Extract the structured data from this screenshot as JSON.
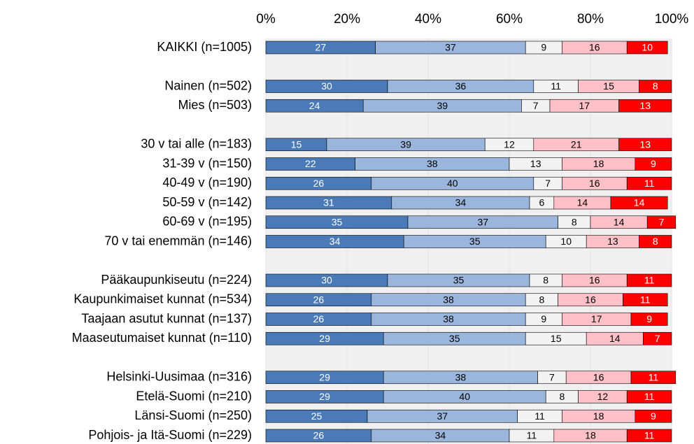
{
  "chart_data": {
    "type": "stacked_barh",
    "categories": [
      "KAIKKI (n=1005)",
      null,
      "Nainen (n=502)",
      "Mies (n=503)",
      null,
      "30 v tai alle (n=183)",
      "31-39 v (n=150)",
      "40-49 v (n=190)",
      "50-59 v (n=142)",
      "60-69 v (n=195)",
      "70 v tai enemmän (n=146)",
      null,
      "Pääkaupunkiseutu (n=224)",
      "Kaupunkimaiset kunnat (n=534)",
      "Taajaan asutut kunnat (n=137)",
      "Maaseutumaiset kunnat (n=110)",
      null,
      "Helsinki-Uusimaa (n=316)",
      "Etelä-Suomi (n=210)",
      "Länsi-Suomi (n=250)",
      "Pohjois- ja Itä-Suomi (n=229)"
    ],
    "series": [
      {
        "color": "#4a7ab8",
        "values": [
          27,
          null,
          30,
          24,
          null,
          15,
          22,
          26,
          31,
          35,
          34,
          null,
          30,
          26,
          26,
          29,
          null,
          29,
          29,
          25,
          26
        ]
      },
      {
        "color": "#9ab6dc",
        "values": [
          37,
          null,
          36,
          39,
          null,
          39,
          38,
          40,
          34,
          37,
          35,
          null,
          35,
          38,
          38,
          35,
          null,
          38,
          40,
          37,
          34
        ]
      },
      {
        "color": "#f2f2f2",
        "values": [
          9,
          null,
          11,
          7,
          null,
          12,
          13,
          7,
          6,
          8,
          10,
          null,
          8,
          8,
          9,
          15,
          null,
          7,
          8,
          11,
          11
        ]
      },
      {
        "color": "#ffc0c8",
        "values": [
          16,
          null,
          15,
          17,
          null,
          21,
          18,
          16,
          14,
          14,
          13,
          null,
          16,
          16,
          17,
          14,
          null,
          16,
          12,
          18,
          18
        ]
      },
      {
        "color": "#ff0000",
        "values": [
          10,
          null,
          8,
          13,
          null,
          13,
          9,
          11,
          14,
          7,
          8,
          null,
          11,
          11,
          9,
          7,
          null,
          11,
          11,
          9,
          11
        ]
      }
    ],
    "xlim": [
      0,
      100
    ],
    "xticks": [
      {
        "value": 0,
        "label": "0%"
      },
      {
        "value": 20,
        "label": "20%"
      },
      {
        "value": 40,
        "label": "40%"
      },
      {
        "value": 60,
        "label": "60%"
      },
      {
        "value": 80,
        "label": "80%"
      },
      {
        "value": 100,
        "label": "100%"
      }
    ],
    "grid": true
  }
}
